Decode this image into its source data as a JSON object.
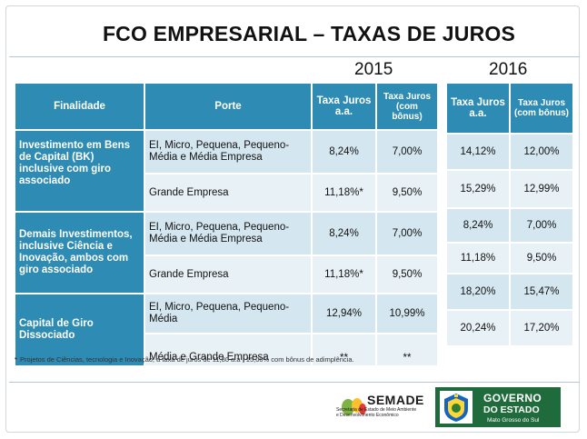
{
  "title": "FCO EMPRESARIAL – TAXAS DE JUROS",
  "year_2015": "2015",
  "year_2016": "2016",
  "headers_2015": {
    "finalidade": "Finalidade",
    "porte": "Porte",
    "taxa_juros": "Taxa Juros a.a.",
    "taxa_bonus": "Taxa Juros (com bônus)"
  },
  "headers_2016": {
    "taxa_juros": "Taxa Juros a.a.",
    "taxa_bonus": "Taxa Juros (com bônus)"
  },
  "rows_2015": [
    {
      "finalidade": "Investimento em Bens de Capital (BK) inclusive com giro associado",
      "porte": "EI, Micro, Pequena, Pequeno-Média e Média Empresa",
      "taxa": "8,24%",
      "bonus": "7,00%"
    },
    {
      "porte": "Grande Empresa",
      "taxa": "11,18%*",
      "bonus": "9,50%"
    },
    {
      "finalidade": "Demais Investimentos, inclusive Ciência e Inovação, ambos com giro associado",
      "porte": "EI, Micro, Pequena, Pequeno-Média e Média Empresa",
      "taxa": "8,24%",
      "bonus": "7,00%"
    },
    {
      "porte": "Grande Empresa",
      "taxa": "11,18%*",
      "bonus": "9,50%"
    },
    {
      "finalidade": "Capital de Giro Dissociado",
      "porte": "EI, Micro, Pequena, Pequeno-Média",
      "taxa": "12,94%",
      "bonus": "10,99%"
    },
    {
      "porte": "Média e Grande Empresa",
      "taxa": "**",
      "bonus": "**"
    }
  ],
  "rows_2016": [
    {
      "taxa": "14,12%",
      "bonus": "12,00%"
    },
    {
      "taxa": "15,29%",
      "bonus": "12,99%"
    },
    {
      "taxa": "8,24%",
      "bonus": "7,00%"
    },
    {
      "taxa": "11,18%",
      "bonus": "9,50%"
    },
    {
      "taxa": "18,20%",
      "bonus": "15,47%"
    },
    {
      "taxa": "20,24%",
      "bonus": "17,20%"
    }
  ],
  "footnote": "Projetos de Ciências, tecnologia e Inovação, a taxa de juros  de 11,80 a.a , 15,00% com bônus de adimplência.",
  "footnote_bullet": "•",
  "logos": {
    "semade_name": "SEMADE",
    "semade_sub1": "Secretaria de Estado de Meio Ambiente",
    "semade_sub2": "e Desenvolvimento Econômico",
    "gov_line1": "GOVERNO",
    "gov_line2": "DO ESTADO",
    "gov_line3": "Mato Grosso do Sul"
  },
  "colors": {
    "header_blue": "#2e8bb3",
    "cell_light": "#d4e6ef",
    "gov_green": "#1f6b3b"
  }
}
